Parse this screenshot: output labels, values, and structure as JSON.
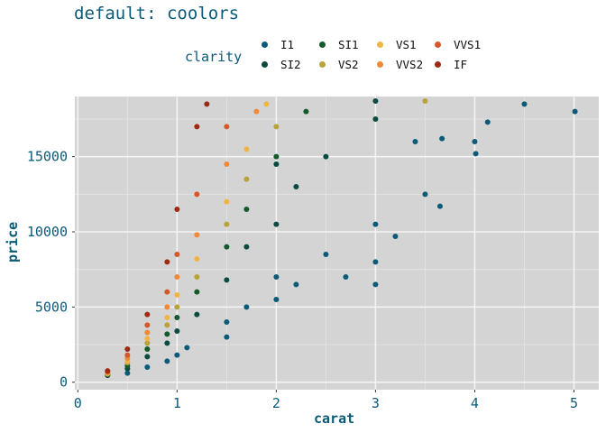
{
  "title": "default: coolors",
  "legend": {
    "title": "clarity",
    "items": [
      {
        "label": "I1",
        "color": "#0b5a78"
      },
      {
        "label": "SI2",
        "color": "#0b4a3e"
      },
      {
        "label": "SI1",
        "color": "#13592a"
      },
      {
        "label": "VS2",
        "color": "#b8a23a"
      },
      {
        "label": "VS1",
        "color": "#f0b446"
      },
      {
        "label": "VVS2",
        "color": "#ee8a3a"
      },
      {
        "label": "VVS1",
        "color": "#d4582a"
      },
      {
        "label": "IF",
        "color": "#9e2a14"
      }
    ]
  },
  "chart_data": {
    "type": "scatter",
    "xlabel": "carat",
    "ylabel": "price",
    "xlim": [
      -0.03,
      5.25
    ],
    "ylim": [
      -500,
      19000
    ],
    "xticks": [
      0,
      1,
      2,
      3,
      4,
      5
    ],
    "yticks": [
      0,
      5000,
      10000,
      15000
    ],
    "grid": true,
    "legend_position": "top",
    "series": [
      {
        "name": "I1",
        "x": [
          0.5,
          0.7,
          0.9,
          1.0,
          1.1,
          1.5,
          1.5,
          1.7,
          2.0,
          2.0,
          2.2,
          2.5,
          2.7,
          3.0,
          3.0,
          3.0,
          3.2,
          3.4,
          3.5,
          3.65,
          3.67,
          4.0,
          4.01,
          4.13,
          4.5,
          5.01
        ],
        "y": [
          600,
          1000,
          1400,
          1800,
          2300,
          3000,
          4000,
          5000,
          5500,
          7000,
          6500,
          8500,
          7000,
          6500,
          8000,
          10500,
          9700,
          16000,
          12500,
          11700,
          16200,
          16000,
          15200,
          17300,
          18500,
          18000
        ]
      },
      {
        "name": "SI2",
        "x": [
          0.3,
          0.5,
          0.7,
          0.9,
          1.0,
          1.2,
          1.5,
          1.7,
          2.0,
          2.0,
          2.2,
          2.5,
          3.0,
          3.0
        ],
        "y": [
          450,
          900,
          1700,
          2600,
          3400,
          4500,
          6800,
          9000,
          10500,
          14500,
          13000,
          15000,
          17500,
          18700
        ]
      },
      {
        "name": "SI1",
        "x": [
          0.3,
          0.5,
          0.7,
          0.9,
          1.0,
          1.2,
          1.5,
          1.7,
          2.0,
          2.3
        ],
        "y": [
          500,
          1100,
          2200,
          3200,
          4300,
          6000,
          9000,
          11500,
          15000,
          18000
        ]
      },
      {
        "name": "VS2",
        "x": [
          0.3,
          0.5,
          0.7,
          0.9,
          1.0,
          1.2,
          1.5,
          1.7,
          2.0,
          3.5
        ],
        "y": [
          550,
          1300,
          2600,
          3800,
          5000,
          7000,
          10500,
          13500,
          17000,
          18700
        ]
      },
      {
        "name": "VS1",
        "x": [
          0.3,
          0.5,
          0.7,
          0.9,
          1.0,
          1.2,
          1.5,
          1.7,
          1.9
        ],
        "y": [
          600,
          1400,
          2900,
          4300,
          5800,
          8200,
          12000,
          15500,
          18500
        ]
      },
      {
        "name": "VVS2",
        "x": [
          0.3,
          0.5,
          0.7,
          0.9,
          1.0,
          1.2,
          1.5,
          1.8
        ],
        "y": [
          650,
          1600,
          3300,
          5000,
          7000,
          9800,
          14500,
          18000
        ]
      },
      {
        "name": "VVS1",
        "x": [
          0.3,
          0.5,
          0.7,
          0.9,
          1.0,
          1.2,
          1.5
        ],
        "y": [
          700,
          1800,
          3800,
          6000,
          8500,
          12500,
          17000
        ]
      },
      {
        "name": "IF",
        "x": [
          0.3,
          0.5,
          0.7,
          0.9,
          1.0,
          1.2,
          1.3
        ],
        "y": [
          750,
          2200,
          4500,
          8000,
          11500,
          17000,
          18500
        ]
      }
    ]
  }
}
